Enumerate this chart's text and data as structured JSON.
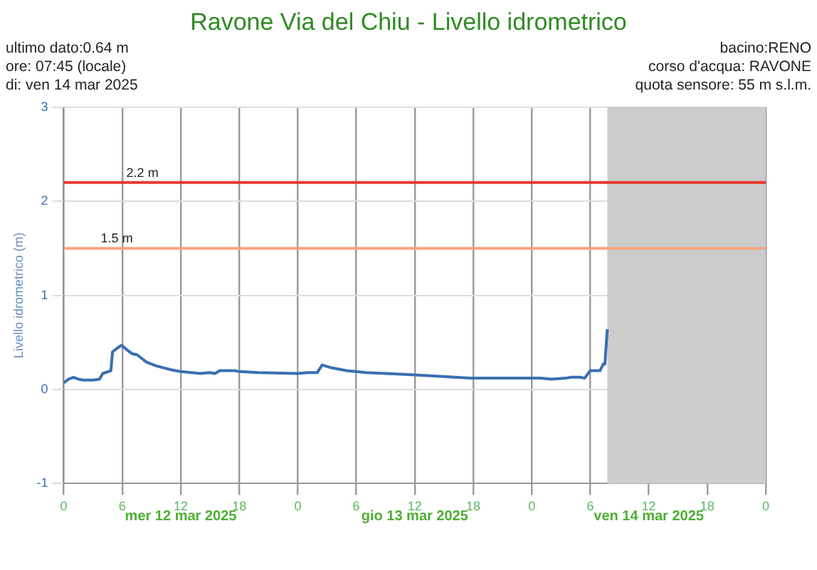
{
  "chart_data": {
    "type": "line",
    "title": "Ravone Via del Chiu - Livello idrometrico",
    "ylabel": "Livello idrometrico (m)",
    "annotations": [
      "ultimo dato:0.64 m",
      "ore: 07:45 (locale)",
      "di: ven 14 mar 2025",
      "bacino:RENO",
      "corso d'acqua: RAVONE",
      "quota sensore: 55 m s.l.m.",
      "mer 12 mar 2025",
      "gio 13 mar 2025",
      "ven 14 mar 2025"
    ],
    "xlim": [
      "2025-03-12T00:00",
      "2025-03-15T00:00"
    ],
    "xticks": [
      {
        "value": "2025-03-12T00:00",
        "label": "0"
      },
      {
        "value": "2025-03-12T06:00",
        "label": "6"
      },
      {
        "value": "2025-03-12T12:00",
        "label": "12"
      },
      {
        "value": "2025-03-12T18:00",
        "label": "18"
      },
      {
        "value": "2025-03-13T00:00",
        "label": "0"
      },
      {
        "value": "2025-03-13T06:00",
        "label": "6"
      },
      {
        "value": "2025-03-13T12:00",
        "label": "12"
      },
      {
        "value": "2025-03-13T18:00",
        "label": "18"
      },
      {
        "value": "2025-03-14T00:00",
        "label": "0"
      },
      {
        "value": "2025-03-14T06:00",
        "label": "6"
      },
      {
        "value": "2025-03-14T12:00",
        "label": "12"
      },
      {
        "value": "2025-03-14T18:00",
        "label": "18"
      },
      {
        "value": "2025-03-15T00:00",
        "label": "0"
      }
    ],
    "ylim": [
      -1,
      3
    ],
    "yticks": [
      -1,
      0,
      1,
      2,
      3
    ],
    "grid": true,
    "legend": false,
    "marker": "none",
    "line_style": "solid",
    "ref_lines": [
      {
        "axis": "y",
        "value": 2.2,
        "label": "2.2 m",
        "color": "#e8392b"
      },
      {
        "axis": "y",
        "value": 1.5,
        "label": "1.5 m",
        "color": "#f4a582"
      }
    ],
    "bands": [
      {
        "axis": "x",
        "from": "2025-03-14T07:45",
        "to": "2025-03-15T00:00",
        "color": "#cccccc"
      }
    ],
    "series": [
      {
        "color": "#3a6fb0",
        "x": [
          "2025-03-12T00:00",
          "2025-03-12T00:30",
          "2025-03-12T01:00",
          "2025-03-12T01:30",
          "2025-03-12T02:00",
          "2025-03-12T03:00",
          "2025-03-12T03:40",
          "2025-03-12T04:00",
          "2025-03-12T04:50",
          "2025-03-12T05:00",
          "2025-03-12T05:30",
          "2025-03-12T05:55",
          "2025-03-12T06:30",
          "2025-03-12T07:00",
          "2025-03-12T07:30",
          "2025-03-12T08:30",
          "2025-03-12T09:30",
          "2025-03-12T11:00",
          "2025-03-12T12:00",
          "2025-03-12T14:00",
          "2025-03-12T15:00",
          "2025-03-12T15:30",
          "2025-03-12T16:00",
          "2025-03-12T17:30",
          "2025-03-12T18:00",
          "2025-03-12T20:00",
          "2025-03-13T00:00",
          "2025-03-13T01:00",
          "2025-03-13T02:00",
          "2025-03-13T02:30",
          "2025-03-13T03:30",
          "2025-03-13T05:00",
          "2025-03-13T07:00",
          "2025-03-13T09:00",
          "2025-03-13T11:00",
          "2025-03-13T13:00",
          "2025-03-13T14:35",
          "2025-03-13T17:40",
          "2025-03-14T00:00",
          "2025-03-14T01:00",
          "2025-03-14T02:00",
          "2025-03-14T03:30",
          "2025-03-14T04:00",
          "2025-03-14T05:00",
          "2025-03-14T05:25",
          "2025-03-14T06:00",
          "2025-03-14T06:30",
          "2025-03-14T07:00",
          "2025-03-14T07:20",
          "2025-03-14T07:30",
          "2025-03-14T07:45"
        ],
        "values": [
          0.07,
          0.11,
          0.13,
          0.11,
          0.1,
          0.1,
          0.11,
          0.17,
          0.2,
          0.4,
          0.44,
          0.47,
          0.42,
          0.38,
          0.37,
          0.29,
          0.25,
          0.21,
          0.19,
          0.17,
          0.18,
          0.17,
          0.2,
          0.2,
          0.19,
          0.18,
          0.17,
          0.18,
          0.18,
          0.26,
          0.23,
          0.2,
          0.18,
          0.17,
          0.16,
          0.15,
          0.14,
          0.12,
          0.12,
          0.12,
          0.11,
          0.12,
          0.13,
          0.13,
          0.12,
          0.2,
          0.2,
          0.2,
          0.27,
          0.27,
          0.64
        ]
      }
    ]
  }
}
